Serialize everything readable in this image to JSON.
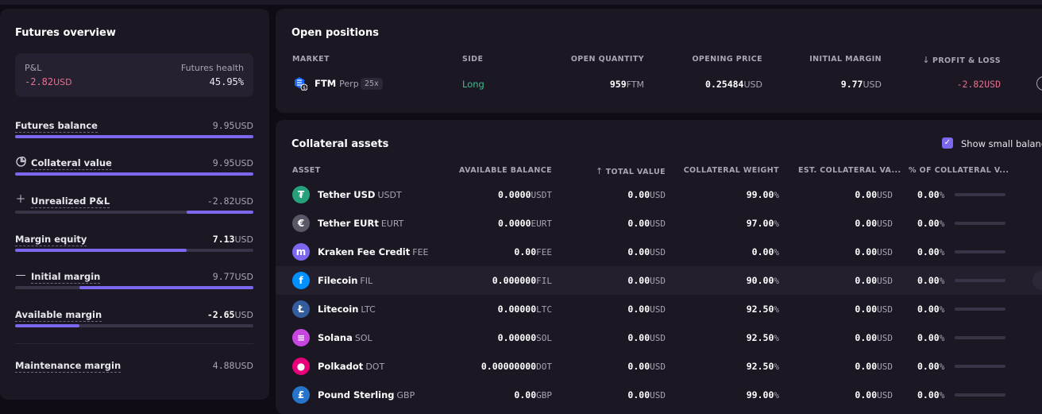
{
  "futures_overview": {
    "title": "Futures overview",
    "pnl_label": "P&L",
    "pnl_value": "-2.82",
    "pnl_unit": "USD",
    "health_label": "Futures health",
    "health_value": "45.95%",
    "metrics": [
      {
        "label": "Futures balance",
        "value": "9.95",
        "unit": "USD",
        "fill": 1.0
      },
      {
        "label": "Collateral value",
        "value": "9.95",
        "unit": "USD",
        "fill": 1.0,
        "icon": "pie-chart-icon"
      },
      {
        "label": "Unrealized P&L",
        "value": "-2.82",
        "unit": "USD",
        "fill_start": 0.72,
        "fill": 0.28,
        "icon": "plus-icon"
      },
      {
        "label": "Margin equity",
        "value": "7.13",
        "unit": "USD",
        "fill": 0.72
      },
      {
        "label": "Initial margin",
        "value": "9.77",
        "unit": "USD",
        "fill_start": 0.27,
        "fill": 0.73,
        "icon": "minus-icon"
      },
      {
        "label": "Available margin",
        "value": "-2.65",
        "unit": "USD",
        "fill": 0.27
      },
      {
        "label": "Maintenance margin",
        "value": "4.88",
        "unit": "USD"
      }
    ]
  },
  "open_positions": {
    "title": "Open positions",
    "headers": [
      "MARKET",
      "SIDE",
      "OPEN QUANTITY",
      "OPENING PRICE",
      "INITIAL MARGIN",
      "PROFIT & LOSS"
    ],
    "rows": [
      {
        "market": "FTM",
        "market_suffix": "Perp",
        "leverage": "25x",
        "side": "Long",
        "quantity": "959",
        "quantity_unit": "FTM",
        "opening_price": "0.25484",
        "opening_price_unit": "USD",
        "initial_margin": "9.77",
        "initial_margin_unit": "USD",
        "pnl": "-2.82",
        "pnl_unit": "USD"
      }
    ]
  },
  "collateral": {
    "title": "Collateral assets",
    "show_small_label": "Show small balanc",
    "show_small_checked": true,
    "headers": [
      "ASSET",
      "AVAILABLE BALANCE",
      "TOTAL VALUE",
      "COLLATERAL WEIGHT",
      "EST. COLLATERAL VA...",
      "% OF COLLATERAL V..."
    ],
    "assets": [
      {
        "name": "Tether USD",
        "ticker": "USDT",
        "balance": "0.0000",
        "balance_unit": "USDT",
        "total": "0.00",
        "total_unit": "USD",
        "weight": "99.00",
        "est": "0.00",
        "est_unit": "USD",
        "pct": "0.00",
        "icon": "tether-icon",
        "color": "#26a17b",
        "glyph": "₮"
      },
      {
        "name": "Tether EURt",
        "ticker": "EURT",
        "balance": "0.0000",
        "balance_unit": "EURT",
        "total": "0.00",
        "total_unit": "USD",
        "weight": "97.00",
        "est": "0.00",
        "est_unit": "USD",
        "pct": "0.00",
        "icon": "tether-eurt-icon",
        "color": "#5a5766",
        "glyph": "€"
      },
      {
        "name": "Kraken Fee Credit",
        "ticker": "FEE",
        "balance": "0.00",
        "balance_unit": "FEE",
        "total": "0.00",
        "total_unit": "USD",
        "weight": "0.00",
        "est": "0.00",
        "est_unit": "USD",
        "pct": "0.00",
        "icon": "kraken-icon",
        "color": "#7b68ee",
        "glyph": "m"
      },
      {
        "name": "Filecoin",
        "ticker": "FIL",
        "balance": "0.000000",
        "balance_unit": "FIL",
        "total": "0.00",
        "total_unit": "USD",
        "weight": "90.00",
        "est": "0.00",
        "est_unit": "USD",
        "pct": "0.00",
        "icon": "filecoin-icon",
        "color": "#0090ff",
        "glyph": "f"
      },
      {
        "name": "Litecoin",
        "ticker": "LTC",
        "balance": "0.00000",
        "balance_unit": "LTC",
        "total": "0.00",
        "total_unit": "USD",
        "weight": "92.50",
        "est": "0.00",
        "est_unit": "USD",
        "pct": "0.00",
        "icon": "litecoin-icon",
        "color": "#345d9d",
        "glyph": "Ł"
      },
      {
        "name": "Solana",
        "ticker": "SOL",
        "balance": "0.00000",
        "balance_unit": "SOL",
        "total": "0.00",
        "total_unit": "USD",
        "weight": "92.50",
        "est": "0.00",
        "est_unit": "USD",
        "pct": "0.00",
        "icon": "solana-icon",
        "color": "#c846e0",
        "glyph": "≡"
      },
      {
        "name": "Polkadot",
        "ticker": "DOT",
        "balance": "0.00000000",
        "balance_unit": "DOT",
        "total": "0.00",
        "total_unit": "USD",
        "weight": "92.50",
        "est": "0.00",
        "est_unit": "USD",
        "pct": "0.00",
        "icon": "polkadot-icon",
        "color": "#e6007a",
        "glyph": "●"
      },
      {
        "name": "Pound Sterling",
        "ticker": "GBP",
        "balance": "0.00",
        "balance_unit": "GBP",
        "total": "0.00",
        "total_unit": "USD",
        "weight": "99.00",
        "est": "0.00",
        "est_unit": "USD",
        "pct": "0.00",
        "icon": "pound-icon",
        "color": "#2775ca",
        "glyph": "£"
      }
    ]
  },
  "colors": {
    "accent": "#7b68ee",
    "positive": "#3fbf8f",
    "negative": "#e8708f"
  }
}
